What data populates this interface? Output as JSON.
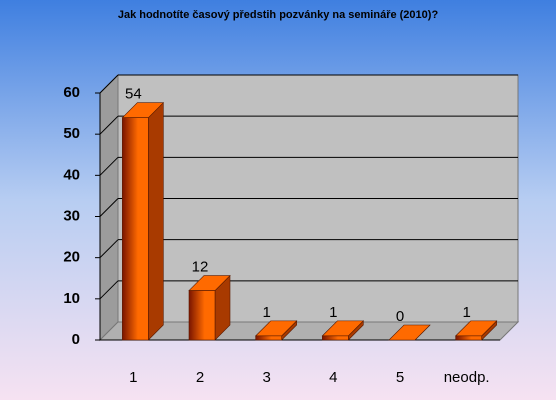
{
  "chart_data": {
    "type": "bar3d",
    "title": "Jak hodnotíte časový předstih pozvánky na semináře (2010)?",
    "categories": [
      "1",
      "2",
      "3",
      "4",
      "5",
      "neodp."
    ],
    "values": [
      54,
      12,
      1,
      1,
      0,
      1
    ],
    "color": "#ff6a00",
    "ylim": [
      0,
      60
    ],
    "yticks": [
      0,
      10,
      20,
      30,
      40,
      50,
      60
    ],
    "grid": true
  }
}
